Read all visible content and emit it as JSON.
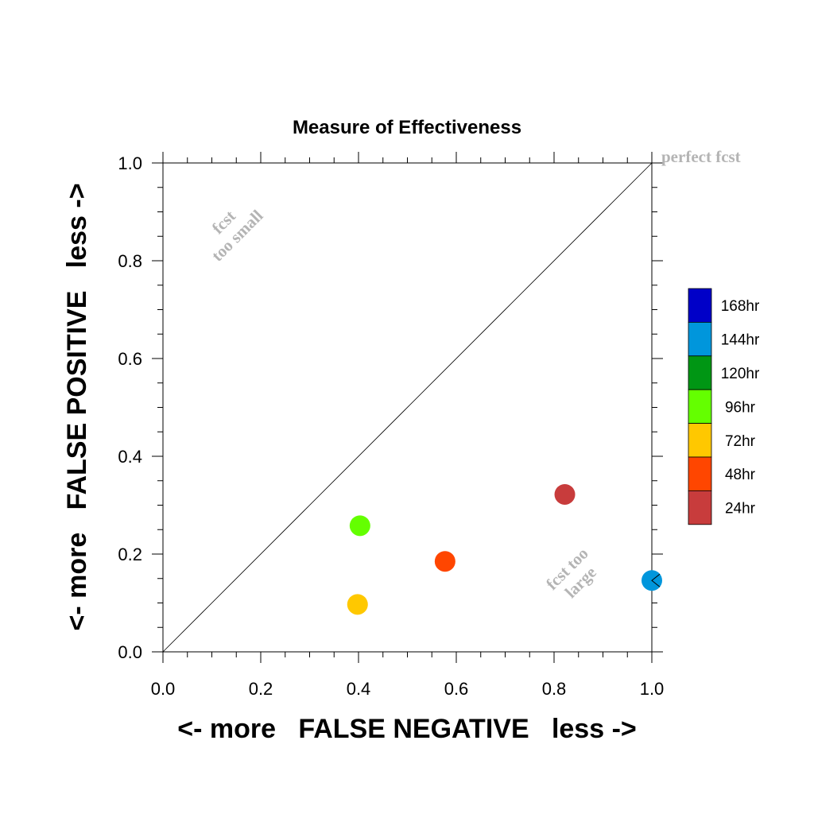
{
  "chart_data": {
    "type": "scatter",
    "title": "Measure of Effectiveness",
    "xlabel": "<- more   FALSE NEGATIVE   less ->",
    "ylabel": "<- more   FALSE POSITIVE   less ->",
    "xlim": [
      0.0,
      1.0
    ],
    "ylim": [
      0.0,
      1.0
    ],
    "x_ticks": [
      "0.0",
      "0.2",
      "0.4",
      "0.6",
      "0.8",
      "1.0"
    ],
    "y_ticks": [
      "0.0",
      "0.2",
      "0.4",
      "0.6",
      "0.8",
      "1.0"
    ],
    "grid": false,
    "diagonal_line": true,
    "legend_position": "right",
    "annotations": {
      "perfect": "perfect fcst",
      "too_small_1": "fcst",
      "too_small_2": "too small",
      "too_large_1": "fcst too",
      "too_large_2": "large"
    },
    "legend": [
      {
        "name": "168hr",
        "color": "#0000c8"
      },
      {
        "name": "144hr",
        "color": "#0096dc"
      },
      {
        "name": "120hr",
        "color": "#009614"
      },
      {
        "name": "96hr",
        "color": "#64ff00"
      },
      {
        "name": "72hr",
        "color": "#ffc800"
      },
      {
        "name": "48hr",
        "color": "#ff4600"
      },
      {
        "name": "24hr",
        "color": "#c83c3c"
      }
    ],
    "series": [
      {
        "name": "24hr",
        "color": "#c83c3c",
        "x": 0.822,
        "y": 0.322
      },
      {
        "name": "48hr",
        "color": "#ff4600",
        "x": 0.577,
        "y": 0.185
      },
      {
        "name": "72hr",
        "color": "#ffc800",
        "x": 0.398,
        "y": 0.097
      },
      {
        "name": "96hr",
        "color": "#64ff00",
        "x": 0.403,
        "y": 0.258
      },
      {
        "name": "144hr",
        "color": "#0096dc",
        "x": 1.0,
        "y": 0.146
      }
    ]
  }
}
